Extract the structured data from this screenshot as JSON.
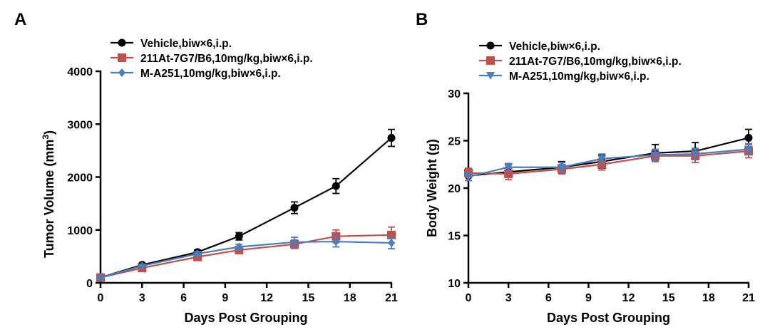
{
  "chart_data": [
    {
      "type": "line",
      "panel": "A",
      "xlabel": "Days Post Grouping",
      "ylabel": "Tumor Volume (mm",
      "ylabel_superscript": "3",
      "ylabel_suffix": ")",
      "xlim": [
        0,
        21
      ],
      "ylim": [
        0,
        4000
      ],
      "xticks": [
        0,
        3,
        6,
        9,
        12,
        15,
        18,
        21
      ],
      "yticks": [
        0,
        1000,
        2000,
        3000,
        4000
      ],
      "legend_position": "top-left",
      "series": [
        {
          "name": "Vehicle,biw×6,i.p.",
          "color": "#000000",
          "marker": "circle",
          "x": [
            0,
            3,
            7,
            10,
            14,
            17,
            21
          ],
          "y": [
            100,
            340,
            580,
            880,
            1420,
            1830,
            2740
          ],
          "err": [
            20,
            30,
            40,
            70,
            110,
            140,
            160
          ]
        },
        {
          "name": "211At-7G7/B6,10mg/kg,biw×6,i.p.",
          "color": "#c0504d",
          "marker": "square",
          "x": [
            0,
            3,
            7,
            10,
            14,
            17,
            21
          ],
          "y": [
            100,
            280,
            490,
            620,
            730,
            880,
            905
          ],
          "err": [
            20,
            30,
            40,
            50,
            80,
            120,
            150
          ]
        },
        {
          "name": "M-A251,10mg/kg,biw×6,i.p.",
          "color": "#4a7ebb",
          "marker": "diamond",
          "x": [
            0,
            3,
            7,
            10,
            14,
            17,
            21
          ],
          "y": [
            100,
            320,
            550,
            680,
            770,
            780,
            755
          ],
          "err": [
            20,
            30,
            40,
            50,
            90,
            100,
            110
          ]
        }
      ]
    },
    {
      "type": "line",
      "panel": "B",
      "xlabel": "Days Post Grouping",
      "ylabel": "Body Weight (g)",
      "xlim": [
        0,
        21
      ],
      "ylim": [
        10,
        30
      ],
      "xticks": [
        0,
        3,
        6,
        9,
        12,
        15,
        18,
        21
      ],
      "yticks": [
        10,
        15,
        20,
        25,
        30
      ],
      "legend_position": "top-left",
      "series": [
        {
          "name": "Vehicle,biw×6,i.p.",
          "color": "#000000",
          "marker": "circle",
          "x": [
            0,
            3,
            7,
            10,
            14,
            17,
            21
          ],
          "y": [
            21.3,
            21.7,
            22.2,
            22.8,
            23.7,
            23.9,
            25.3
          ],
          "err": [
            0.5,
            0.5,
            0.6,
            0.7,
            0.9,
            0.9,
            0.9
          ]
        },
        {
          "name": "211At-7G7/B6,10mg/kg,biw×6,i.p.",
          "color": "#c0504d",
          "marker": "square",
          "x": [
            0,
            3,
            7,
            10,
            14,
            17,
            21
          ],
          "y": [
            21.6,
            21.5,
            22.0,
            22.5,
            23.4,
            23.4,
            23.9
          ],
          "err": [
            0.5,
            0.6,
            0.5,
            0.6,
            0.6,
            0.7,
            0.7
          ]
        },
        {
          "name": "M-A251,10mg/kg,biw×6,i.p.",
          "color": "#4a7ebb",
          "marker": "triangle-down",
          "x": [
            0,
            3,
            7,
            10,
            14,
            17,
            21
          ],
          "y": [
            21.2,
            22.2,
            22.2,
            23.1,
            23.5,
            23.6,
            24.1
          ],
          "err": [
            0.4,
            0.4,
            0.5,
            0.5,
            0.6,
            0.6,
            0.6
          ]
        }
      ]
    }
  ]
}
